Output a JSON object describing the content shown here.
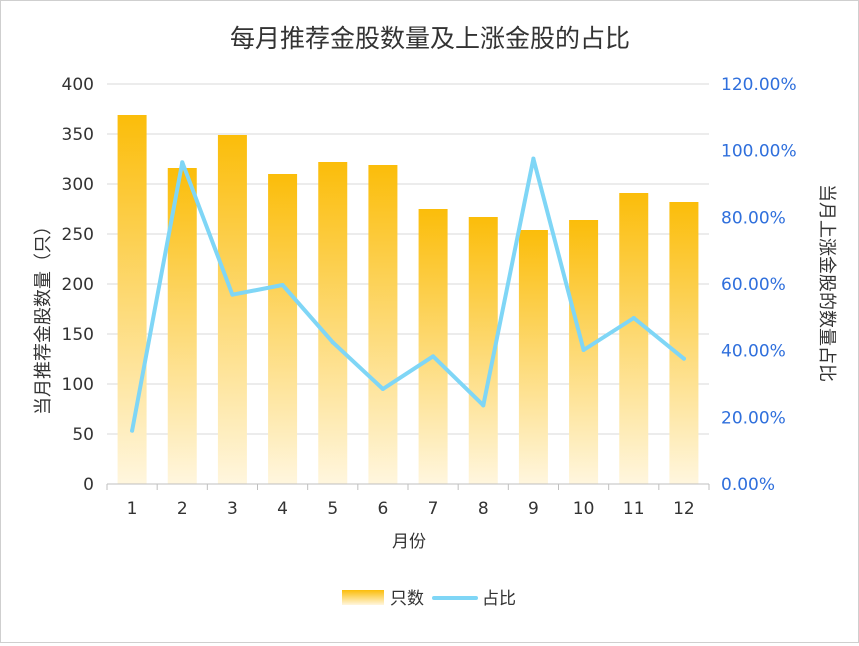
{
  "chart_data": {
    "type": "bar",
    "title": "每月推荐金股数量及上涨金股的占比",
    "xlabel": "月份",
    "ylabel": "当月推荐金股数量（只）",
    "y2label": "当月上涨金股的数量占比",
    "categories": [
      "1",
      "2",
      "3",
      "4",
      "5",
      "6",
      "7",
      "8",
      "9",
      "10",
      "11",
      "12"
    ],
    "series": [
      {
        "name": "只数",
        "type": "bar",
        "axis": "left",
        "values": [
          369,
          316,
          349,
          310,
          322,
          319,
          275,
          267,
          254,
          264,
          291,
          282
        ]
      },
      {
        "name": "占比",
        "type": "line",
        "axis": "right",
        "values": [
          16.0,
          96.5,
          56.8,
          59.7,
          42.5,
          28.5,
          38.3,
          23.6,
          97.6,
          40.2,
          49.8,
          37.6
        ]
      }
    ],
    "ylim": [
      0,
      400
    ],
    "yticks": [
      "0",
      "50",
      "100",
      "150",
      "200",
      "250",
      "300",
      "350",
      "400"
    ],
    "y2lim": [
      0,
      120
    ],
    "y2ticks": [
      "0.00%",
      "20.00%",
      "40.00%",
      "60.00%",
      "80.00%",
      "100.00%",
      "120.00%"
    ],
    "legend_position": "bottom",
    "grid": true,
    "colors": {
      "bar_top": "#fbbd0a",
      "bar_bottom": "#fff6de",
      "line": "#7fd6f6",
      "right_axis_text": "#2f6fdc",
      "text": "#333333",
      "grid": "#d9d9d9"
    }
  }
}
